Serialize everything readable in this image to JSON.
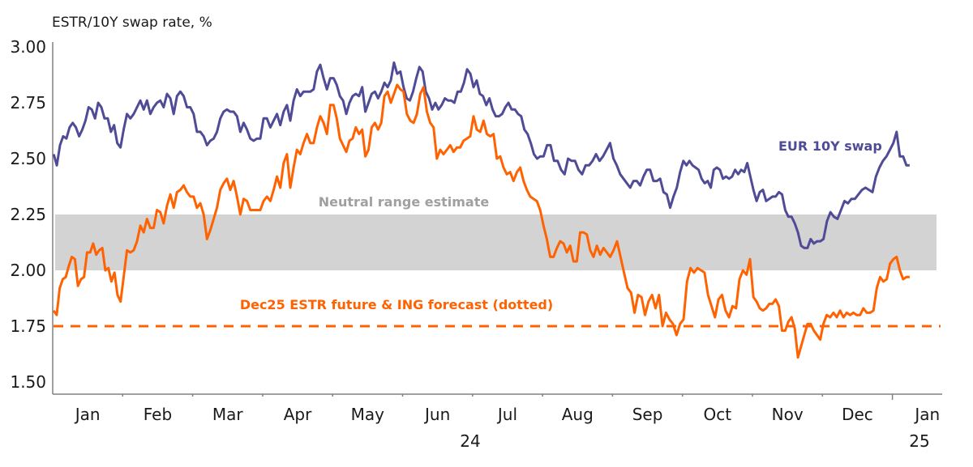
{
  "chart_data": {
    "type": "line",
    "title": "ESTR/10Y swap rate, %",
    "ylim": [
      1.5,
      3.0
    ],
    "yticks": [
      "3.00",
      "2.75",
      "2.50",
      "2.25",
      "2.00",
      "1.75",
      "1.50"
    ],
    "ytick_values": [
      3.0,
      2.75,
      2.5,
      2.25,
      2.0,
      1.75,
      1.5
    ],
    "xticks": [
      "Jan",
      "Feb",
      "Mar",
      "Apr",
      "May",
      "Jun",
      "Jul",
      "Aug",
      "Sep",
      "Oct",
      "Nov",
      "Dec",
      "Jan"
    ],
    "year_labels": [
      "24",
      "25"
    ],
    "grid": false,
    "colors": {
      "swap": "#4f4b96",
      "estr": "#ff6200",
      "band": "#d3d3d3",
      "band_label": "#a0a0a0"
    },
    "band": {
      "label": "Neutral range estimate",
      "low": 2.0,
      "high": 2.25
    },
    "reference_line": {
      "label": "Dec25 ESTR future & ING forecast (dotted)",
      "value": 1.75,
      "style": "dashed"
    },
    "series": [
      {
        "name": "EUR 10Y swap",
        "months": [
          {
            "month": "2024-01",
            "values": [
              2.52,
              2.47,
              2.56,
              2.6,
              2.59,
              2.64,
              2.66,
              2.64,
              2.6,
              2.63,
              2.67,
              2.73,
              2.72,
              2.68,
              2.75,
              2.73,
              2.68,
              2.68,
              2.62,
              2.65,
              2.57,
              2.55
            ]
          },
          {
            "month": "2024-02",
            "values": [
              2.63,
              2.7,
              2.68,
              2.7,
              2.73,
              2.76,
              2.72,
              2.76,
              2.7,
              2.73,
              2.75,
              2.76,
              2.73,
              2.79,
              2.77,
              2.7,
              2.78,
              2.8,
              2.78,
              2.73,
              2.73
            ]
          },
          {
            "month": "2024-03",
            "values": [
              2.7,
              2.62,
              2.62,
              2.6,
              2.56,
              2.58,
              2.59,
              2.62,
              2.68,
              2.71,
              2.72,
              2.71,
              2.71,
              2.69,
              2.62,
              2.66,
              2.63,
              2.59,
              2.58,
              2.59,
              2.59
            ]
          },
          {
            "month": "2024-04",
            "values": [
              2.68,
              2.68,
              2.64,
              2.67,
              2.7,
              2.65,
              2.71,
              2.74,
              2.67,
              2.76,
              2.81,
              2.78,
              2.8,
              2.8,
              2.8,
              2.81,
              2.89,
              2.92,
              2.86,
              2.81,
              2.86
            ]
          },
          {
            "month": "2024-05",
            "values": [
              2.86,
              2.83,
              2.78,
              2.76,
              2.7,
              2.75,
              2.78,
              2.79,
              2.78,
              2.82,
              2.71,
              2.75,
              2.79,
              2.8,
              2.77,
              2.8,
              2.84,
              2.82,
              2.85,
              2.93,
              2.88,
              2.89
            ]
          },
          {
            "month": "2024-06",
            "values": [
              2.82,
              2.77,
              2.76,
              2.8,
              2.86,
              2.91,
              2.89,
              2.8,
              2.77,
              2.72,
              2.75,
              2.72,
              2.74,
              2.77,
              2.76,
              2.76,
              2.75,
              2.8,
              2.8,
              2.84,
              2.9,
              2.88
            ]
          },
          {
            "month": "2024-07",
            "values": [
              2.82,
              2.85,
              2.79,
              2.78,
              2.74,
              2.77,
              2.72,
              2.69,
              2.69,
              2.7,
              2.73,
              2.75,
              2.72,
              2.72,
              2.7,
              2.69,
              2.63,
              2.61,
              2.57,
              2.52,
              2.5,
              2.51
            ]
          },
          {
            "month": "2024-08",
            "values": [
              2.51,
              2.56,
              2.56,
              2.49,
              2.49,
              2.45,
              2.43,
              2.5,
              2.49,
              2.49,
              2.45,
              2.43,
              2.47,
              2.47,
              2.49,
              2.52,
              2.49,
              2.51,
              2.54,
              2.57
            ]
          },
          {
            "month": "2024-09",
            "values": [
              2.5,
              2.47,
              2.43,
              2.41,
              2.39,
              2.37,
              2.4,
              2.4,
              2.38,
              2.42,
              2.45,
              2.45,
              2.4,
              2.4,
              2.41,
              2.35,
              2.34,
              2.28,
              2.33,
              2.37,
              2.44
            ]
          },
          {
            "month": "2024-10",
            "values": [
              2.49,
              2.47,
              2.49,
              2.47,
              2.46,
              2.45,
              2.41,
              2.39,
              2.4,
              2.37,
              2.45,
              2.46,
              2.45,
              2.41,
              2.42,
              2.41,
              2.42,
              2.45,
              2.43,
              2.45,
              2.44,
              2.48,
              2.42
            ]
          },
          {
            "month": "2024-11",
            "values": [
              2.36,
              2.31,
              2.35,
              2.36,
              2.31,
              2.32,
              2.33,
              2.33,
              2.35,
              2.34,
              2.27,
              2.24,
              2.24,
              2.21,
              2.17,
              2.11,
              2.1,
              2.1,
              2.14,
              2.12,
              2.13,
              2.13
            ]
          },
          {
            "month": "2024-12",
            "values": [
              2.14,
              2.22,
              2.26,
              2.24,
              2.23,
              2.27,
              2.31,
              2.3,
              2.32,
              2.32,
              2.34,
              2.36,
              2.37,
              2.36,
              2.35,
              2.42,
              2.46,
              2.49,
              2.51,
              2.54
            ]
          },
          {
            "month": "2025-01",
            "values": [
              2.57,
              2.62,
              2.51,
              2.51,
              2.47,
              2.47
            ]
          }
        ]
      },
      {
        "name": "Dec25 ESTR future",
        "months": [
          {
            "month": "2024-01",
            "values": [
              1.82,
              1.8,
              1.92,
              1.96,
              1.97,
              2.02,
              2.06,
              2.05,
              1.93,
              1.96,
              1.97,
              2.08,
              2.08,
              2.12,
              2.07,
              2.09,
              2.1,
              2.0,
              2.01,
              1.95,
              1.99,
              1.89,
              1.86
            ]
          },
          {
            "month": "2024-02",
            "values": [
              1.97,
              2.09,
              2.08,
              2.09,
              2.13,
              2.2,
              2.17,
              2.23,
              2.19,
              2.19,
              2.27,
              2.26,
              2.21,
              2.29,
              2.34,
              2.28,
              2.35,
              2.36,
              2.38,
              2.35,
              2.33
            ]
          },
          {
            "month": "2024-03",
            "values": [
              2.33,
              2.28,
              2.3,
              2.25,
              2.14,
              2.18,
              2.23,
              2.28,
              2.36,
              2.39,
              2.41,
              2.36,
              2.4,
              2.33,
              2.25,
              2.32,
              2.31,
              2.27,
              2.27,
              2.27,
              2.27
            ]
          },
          {
            "month": "2024-04",
            "values": [
              2.31,
              2.33,
              2.31,
              2.36,
              2.42,
              2.37,
              2.48,
              2.52,
              2.37,
              2.46,
              2.54,
              2.52,
              2.57,
              2.61,
              2.57,
              2.57,
              2.64,
              2.69,
              2.66,
              2.61,
              2.74
            ]
          },
          {
            "month": "2024-05",
            "values": [
              2.74,
              2.68,
              2.59,
              2.56,
              2.53,
              2.58,
              2.59,
              2.64,
              2.61,
              2.63,
              2.51,
              2.54,
              2.64,
              2.66,
              2.63,
              2.66,
              2.78,
              2.8,
              2.75,
              2.79,
              2.83,
              2.81
            ]
          },
          {
            "month": "2024-06",
            "values": [
              2.8,
              2.7,
              2.67,
              2.66,
              2.7,
              2.79,
              2.82,
              2.71,
              2.66,
              2.64,
              2.5,
              2.54,
              2.52,
              2.54,
              2.56,
              2.53,
              2.55,
              2.55,
              2.58,
              2.59,
              2.6
            ]
          },
          {
            "month": "2024-07",
            "values": [
              2.69,
              2.63,
              2.62,
              2.67,
              2.61,
              2.6,
              2.61,
              2.5,
              2.51,
              2.46,
              2.43,
              2.44,
              2.4,
              2.44,
              2.46,
              2.4,
              2.36,
              2.33,
              2.32,
              2.31,
              2.27
            ]
          },
          {
            "month": "2024-08",
            "values": [
              2.2,
              2.14,
              2.06,
              2.06,
              2.1,
              2.13,
              2.12,
              2.08,
              2.11,
              2.04,
              2.04,
              2.17,
              2.17,
              2.16,
              2.09,
              2.06,
              2.11,
              2.07,
              2.1,
              2.08,
              2.06
            ]
          },
          {
            "month": "2024-09",
            "values": [
              2.09,
              2.13,
              2.06,
              1.99,
              1.92,
              1.9,
              1.81,
              1.89,
              1.88,
              1.8,
              1.86,
              1.89,
              1.83,
              1.89,
              1.75,
              1.81,
              1.78,
              1.76,
              1.71,
              1.76
            ]
          },
          {
            "month": "2024-10",
            "values": [
              1.78,
              1.95,
              2.01,
              1.99,
              2.01,
              2.0,
              1.99,
              1.89,
              1.84,
              1.79,
              1.87,
              1.89,
              1.82,
              1.79,
              1.84,
              1.83,
              1.96,
              2.0,
              1.98,
              2.05
            ]
          },
          {
            "month": "2024-11",
            "values": [
              1.88,
              1.86,
              1.83,
              1.82,
              1.83,
              1.85,
              1.85,
              1.87,
              1.84,
              1.73,
              1.73,
              1.77,
              1.79,
              1.74,
              1.61,
              1.66,
              1.71,
              1.76,
              1.76,
              1.73,
              1.71,
              1.69
            ]
          },
          {
            "month": "2024-12",
            "values": [
              1.76,
              1.8,
              1.79,
              1.81,
              1.79,
              1.82,
              1.79,
              1.81,
              1.8,
              1.81,
              1.8,
              1.8,
              1.83,
              1.81,
              1.81,
              1.82,
              1.92,
              1.97,
              1.95,
              1.96,
              2.03
            ]
          },
          {
            "month": "2025-01",
            "values": [
              2.05,
              2.06,
              2.0,
              1.96,
              1.97,
              1.97
            ]
          }
        ]
      }
    ],
    "annotations": {
      "swap_label": "EUR 10Y swap"
    }
  }
}
